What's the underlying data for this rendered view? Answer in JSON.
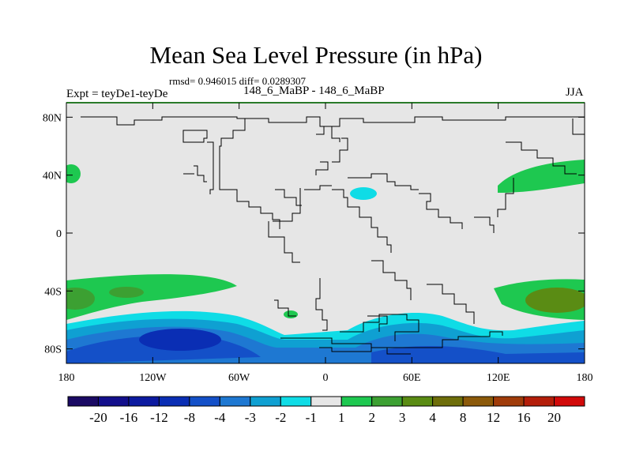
{
  "chart_data": {
    "type": "heatmap",
    "title": "Mean Sea Level Pressure (in hPa)",
    "subtitle": "rmsd= 0.946015 diff= 0.0289307",
    "left_label": "Expt = teyDe1-teyDe",
    "center_label": "148_6_MaBP - 148_6_MaBP",
    "right_label": "JJA",
    "x_ticks": [
      {
        "value": -180,
        "label": "180"
      },
      {
        "value": -120,
        "label": "120W"
      },
      {
        "value": -60,
        "label": "60W"
      },
      {
        "value": 0,
        "label": "0"
      },
      {
        "value": 60,
        "label": "60E"
      },
      {
        "value": 120,
        "label": "120E"
      },
      {
        "value": 180,
        "label": "180"
      }
    ],
    "y_ticks": [
      {
        "value": 80,
        "label": "80N"
      },
      {
        "value": 40,
        "label": "40N"
      },
      {
        "value": 0,
        "label": "0"
      },
      {
        "value": -40,
        "label": "40S"
      },
      {
        "value": -80,
        "label": "80S"
      }
    ],
    "xlim": [
      -180,
      180
    ],
    "ylim": [
      -90,
      90
    ],
    "colorbar": {
      "colors": [
        "#1a0a64",
        "#130f8c",
        "#0c1aa0",
        "#0a2eb4",
        "#1450c8",
        "#1e78d2",
        "#0fa0d2",
        "#0fdce6",
        "#e6e6e6",
        "#1ec850",
        "#3ca032",
        "#5a8c14",
        "#6e6e0a",
        "#8c5a0a",
        "#a03c0a",
        "#b41e0a",
        "#d20a0a"
      ],
      "labels": [
        "-20",
        "-16",
        "-12",
        "-8",
        "-4",
        "-3",
        "-2",
        "-1",
        "1",
        "2",
        "3",
        "4",
        "8",
        "12",
        "16",
        "20"
      ]
    },
    "colors": {
      "neutral": "#e6e6e6",
      "pos1": "#1ec850",
      "pos2": "#3ca032",
      "pos3": "#5a8c14",
      "neg1": "#0fdce6",
      "neg2": "#0fa0d2",
      "neg3": "#1e78d2",
      "neg4": "#1450c8",
      "neg5": "#0a2eb4",
      "frame_top": "#2a7a2a"
    }
  }
}
